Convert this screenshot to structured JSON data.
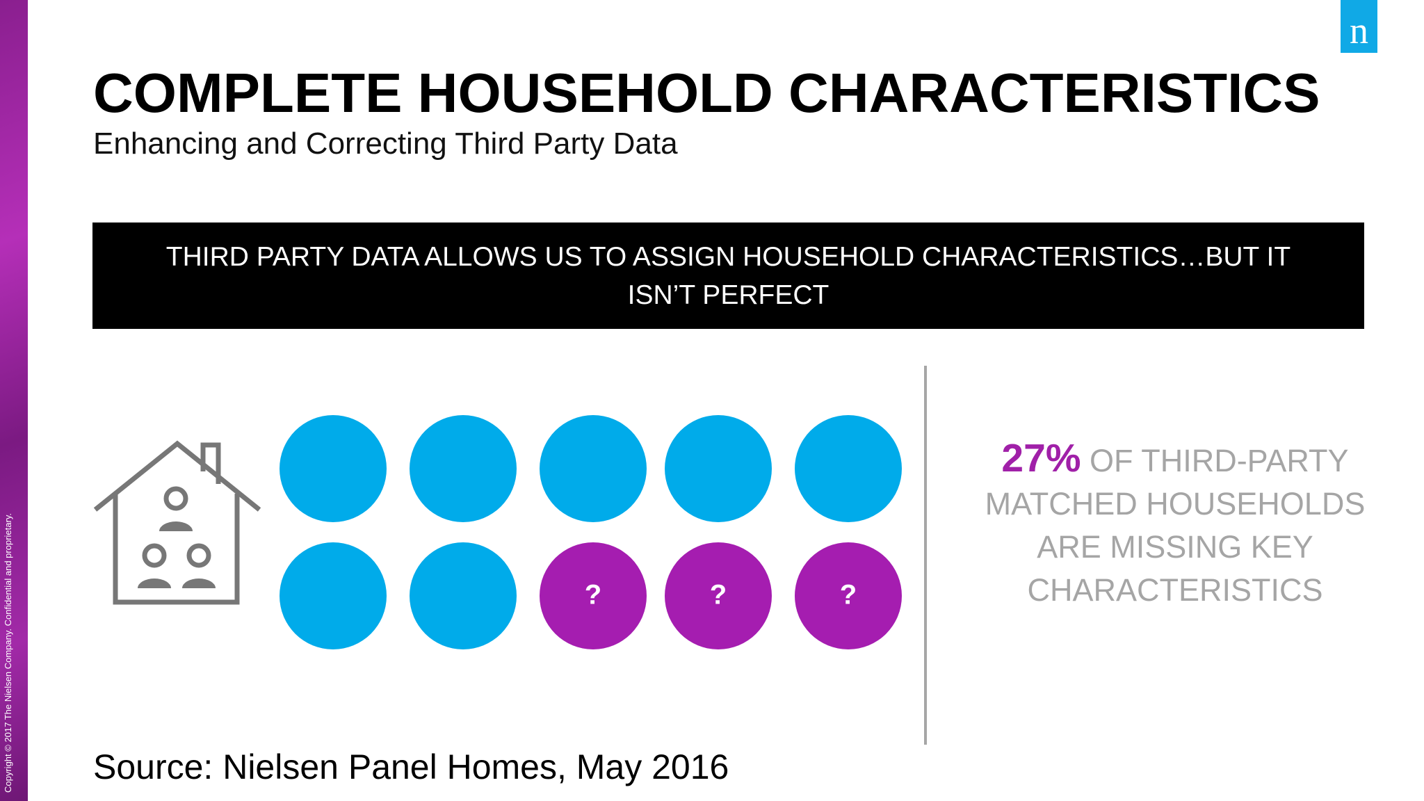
{
  "logo": "n",
  "header": {
    "title": "COMPLETE HOUSEHOLD CHARACTERISTICS",
    "subtitle": "Enhancing and Correcting Third Party Data"
  },
  "banner": "THIRD PARTY DATA ALLOWS US TO ASSIGN HOUSEHOLD CHARACTERISTICS…BUT IT ISN’T PERFECT",
  "icons": {
    "question_marks": [
      "?",
      "?",
      "?"
    ]
  },
  "stat": {
    "highlight": "27%",
    "text": "OF THIRD-PARTY MATCHED HOUSEHOLDS ARE MISSING KEY CHARACTERISTICS"
  },
  "source": "Source: Nielsen Panel Homes, May 2016",
  "copyright": "Copyright © 2017 The Nielsen Company. Confidential and proprietary."
}
